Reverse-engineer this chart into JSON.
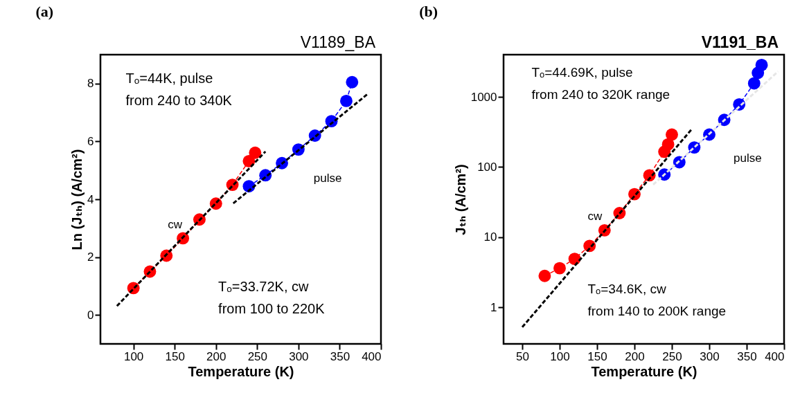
{
  "chart_data": [
    {
      "type": "line",
      "title": "(a)",
      "subtitle": "V1189_BA",
      "xlabel": "Temperature (K)",
      "ylabel": "Ln (Jₜₕ) (A/cm²)",
      "xlim": [
        60,
        400
      ],
      "ylim": [
        -1,
        9
      ],
      "xticks": [
        100,
        150,
        200,
        250,
        300,
        350,
        400
      ],
      "yticks": [
        0,
        2,
        4,
        6,
        8
      ],
      "grid": false,
      "series": [
        {
          "color": "#ff0000",
          "marker": "circle",
          "line_style": "dashed",
          "x": [
            100,
            120,
            140,
            160,
            180,
            200,
            220,
            240,
            247.5
          ],
          "values": [
            0.93,
            1.5,
            2.05,
            2.65,
            3.3,
            3.85,
            4.5,
            5.32,
            5.61
          ]
        },
        {
          "color": "#0000ff",
          "marker": "circle",
          "line_style": "dashed",
          "x": [
            240,
            260,
            280,
            300,
            320,
            340,
            358,
            365
          ],
          "values": [
            4.45,
            4.83,
            5.25,
            5.72,
            6.2,
            6.7,
            7.4,
            8.05
          ]
        },
        {
          "color": "#000000",
          "marker": "none",
          "line_style": "dashed",
          "x": [
            80,
            260
          ],
          "values": [
            0.31,
            5.65
          ]
        },
        {
          "color": "#000000",
          "marker": "none",
          "line_style": "dashed",
          "x": [
            221,
            383
          ],
          "values": [
            3.86,
            7.62
          ]
        }
      ],
      "annotations": [
        "Tₒ=44K, pulse\nfrom 240 to 340K",
        "Tₒ=33.72K, cw\nfrom 100 to 220K",
        "cw",
        "pulse"
      ]
    },
    {
      "type": "line",
      "title": "(b)",
      "subtitle": "V1191_BA",
      "xlabel": "Temperature (K)",
      "ylabel": "Jₜₕ (A/cm²)",
      "log": true,
      "xlim": [
        25,
        400
      ],
      "ylim": [
        0.3,
        4000
      ],
      "xticks": [
        50,
        100,
        150,
        200,
        250,
        300,
        350,
        400
      ],
      "yticks": [
        1,
        10,
        100,
        1000
      ],
      "grid": false,
      "series": [
        {
          "color": "#ff0000",
          "marker": "circle",
          "line_style": "dashed",
          "x": [
            80,
            100,
            120,
            140,
            160,
            180,
            200,
            220,
            240,
            245,
            250
          ],
          "values": [
            2.8,
            3.6,
            4.9,
            7.5,
            12.5,
            22,
            41,
            76,
            165,
            210,
            290
          ]
        },
        {
          "color": "#0000ff",
          "marker": "circle",
          "line_style": "dashed",
          "x": [
            240,
            260,
            280,
            300,
            320,
            340,
            360,
            365,
            370
          ],
          "values": [
            78,
            117,
            190,
            290,
            470,
            780,
            1560,
            2200,
            2850
          ]
        },
        {
          "color": "#000000",
          "marker": "none",
          "line_style": "dashed",
          "x": [
            50,
            277
          ],
          "values": [
            0.52,
            350
          ]
        },
        {
          "color": "#e6e6e6",
          "marker": "none",
          "line_style": "dashed",
          "x": [
            225,
            392
          ],
          "values": [
            56,
            2300
          ]
        }
      ],
      "annotations": [
        "Tₒ=44.69K, pulse\nfrom 240 to 320K range",
        "Tₒ=34.6K, cw\nfrom 140 to 200K range",
        "cw",
        "pulse"
      ]
    }
  ]
}
